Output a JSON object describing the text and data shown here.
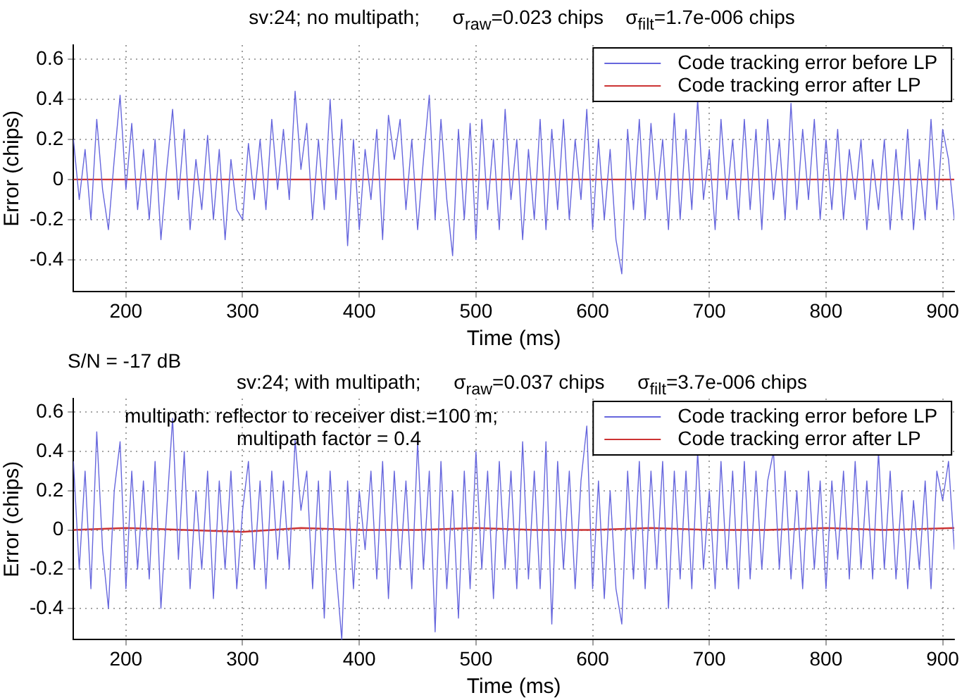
{
  "chart_data": [
    {
      "type": "line",
      "title": "sv:24; no multipath;      σ$_{raw}$=0.023 chips    σ$_{filt}$=1.7e-006 chips",
      "xlabel": "Time (ms)",
      "ylabel": "Error (chips)",
      "annotations": [
        "S/N = -17 dB"
      ],
      "x": [
        155,
        160,
        165,
        170,
        175,
        180,
        185,
        190,
        195,
        200,
        205,
        210,
        215,
        220,
        225,
        230,
        235,
        240,
        245,
        250,
        255,
        260,
        265,
        270,
        275,
        280,
        285,
        290,
        295,
        300,
        305,
        310,
        315,
        320,
        325,
        330,
        335,
        340,
        345,
        350,
        355,
        360,
        365,
        370,
        375,
        380,
        385,
        390,
        395,
        400,
        405,
        410,
        415,
        420,
        425,
        430,
        435,
        440,
        445,
        450,
        455,
        460,
        465,
        470,
        475,
        480,
        485,
        490,
        495,
        500,
        505,
        510,
        515,
        520,
        525,
        530,
        535,
        540,
        545,
        550,
        555,
        560,
        565,
        570,
        575,
        580,
        585,
        590,
        595,
        600,
        605,
        610,
        615,
        620,
        625,
        630,
        635,
        640,
        645,
        650,
        655,
        660,
        665,
        670,
        675,
        680,
        685,
        690,
        695,
        700,
        705,
        710,
        715,
        720,
        725,
        730,
        735,
        740,
        745,
        750,
        755,
        760,
        765,
        770,
        775,
        780,
        785,
        790,
        795,
        800,
        805,
        810,
        815,
        820,
        825,
        830,
        835,
        840,
        845,
        850,
        855,
        860,
        865,
        870,
        875,
        880,
        885,
        890,
        895,
        900,
        905,
        910
      ],
      "series": [
        {
          "name": "Code tracking error before LP",
          "color": "#6666dd",
          "values": [
            0.2,
            -0.1,
            0.15,
            -0.2,
            0.3,
            -0.05,
            -0.25,
            0.1,
            0.42,
            -0.05,
            0.28,
            -0.15,
            0.15,
            -0.2,
            0.2,
            -0.3,
            0.05,
            0.35,
            -0.1,
            0.25,
            -0.25,
            0.1,
            -0.15,
            0.22,
            -0.2,
            0.15,
            -0.3,
            0.1,
            -0.15,
            -0.2,
            0.18,
            -0.1,
            0.2,
            -0.15,
            0.3,
            -0.05,
            0.25,
            -0.1,
            0.44,
            0.05,
            0.28,
            -0.2,
            0.2,
            -0.15,
            0.4,
            -0.1,
            0.3,
            -0.33,
            0.2,
            -0.25,
            0.15,
            -0.1,
            0.25,
            -0.3,
            0.32,
            0.1,
            0.3,
            -0.15,
            0.2,
            -0.25,
            0.1,
            0.42,
            -0.2,
            0.3,
            -0.1,
            -0.38,
            0.25,
            -0.2,
            0.28,
            -0.3,
            0.3,
            -0.15,
            0.2,
            -0.25,
            0.35,
            -0.1,
            0.2,
            -0.3,
            0.15,
            -0.2,
            0.3,
            -0.25,
            0.25,
            -0.15,
            0.3,
            -0.2,
            0.2,
            -0.1,
            0.35,
            -0.25,
            0.2,
            -0.2,
            0.15,
            -0.3,
            -0.47,
            0.25,
            -0.15,
            0.3,
            -0.2,
            0.28,
            -0.1,
            0.2,
            -0.25,
            0.33,
            -0.2,
            0.25,
            -0.15,
            0.4,
            -0.1,
            0.15,
            -0.25,
            0.3,
            -0.1,
            0.2,
            -0.2,
            0.3,
            -0.15,
            0.25,
            -0.25,
            0.3,
            -0.1,
            0.2,
            -0.2,
            0.38,
            -0.15,
            0.25,
            -0.1,
            0.3,
            -0.2,
            0.2,
            -0.15,
            0.25,
            -0.2,
            0.15,
            -0.1,
            0.2,
            -0.25,
            0.1,
            -0.15,
            0.2,
            -0.25,
            0.15,
            -0.2,
            0.25,
            -0.25,
            0.1,
            -0.2,
            0.3,
            -0.15,
            0.25,
            0.1,
            -0.2
          ]
        },
        {
          "name": "Code tracking error after LP",
          "color": "#cc3333",
          "x": [
            155,
            910
          ],
          "values": [
            0,
            0
          ]
        }
      ],
      "xlim": [
        155,
        910
      ],
      "ylim": [
        -0.56,
        0.67
      ],
      "xticks": [
        200,
        300,
        400,
        500,
        600,
        700,
        800,
        900
      ],
      "yticks": [
        -0.4,
        -0.2,
        0,
        0.2,
        0.4,
        0.6
      ],
      "grid": true,
      "legend": "top right",
      "marker": "none",
      "line_style": "solid"
    },
    {
      "type": "line",
      "title": "sv:24; with multipath;      σ$_{raw}$=0.037 chips      σ$_{filt}$=3.7e-006 chips",
      "xlabel": "Time (ms)",
      "ylabel": "Error (chips)",
      "annotations": [
        "multipath: reflector to receiver dist.=100 m;",
        "multipath factor = 0.4"
      ],
      "x": [
        155,
        160,
        165,
        170,
        175,
        180,
        185,
        190,
        195,
        200,
        205,
        210,
        215,
        220,
        225,
        230,
        235,
        240,
        245,
        250,
        255,
        260,
        265,
        270,
        275,
        280,
        285,
        290,
        295,
        300,
        305,
        310,
        315,
        320,
        325,
        330,
        335,
        340,
        345,
        350,
        355,
        360,
        365,
        370,
        375,
        380,
        385,
        390,
        395,
        400,
        405,
        410,
        415,
        420,
        425,
        430,
        435,
        440,
        445,
        450,
        455,
        460,
        465,
        470,
        475,
        480,
        485,
        490,
        495,
        500,
        505,
        510,
        515,
        520,
        525,
        530,
        535,
        540,
        545,
        550,
        555,
        560,
        565,
        570,
        575,
        580,
        585,
        590,
        595,
        600,
        605,
        610,
        615,
        620,
        625,
        630,
        635,
        640,
        645,
        650,
        655,
        660,
        665,
        670,
        675,
        680,
        685,
        690,
        695,
        700,
        705,
        710,
        715,
        720,
        725,
        730,
        735,
        740,
        745,
        750,
        755,
        760,
        765,
        770,
        775,
        780,
        785,
        790,
        795,
        800,
        805,
        810,
        815,
        820,
        825,
        830,
        835,
        840,
        845,
        850,
        855,
        860,
        865,
        870,
        875,
        880,
        885,
        890,
        895,
        900,
        905,
        910
      ],
      "series": [
        {
          "name": "Code tracking error before LP",
          "color": "#6666dd",
          "values": [
            0.35,
            -0.2,
            0.3,
            -0.3,
            0.5,
            -0.1,
            -0.4,
            0.2,
            0.45,
            -0.3,
            0.3,
            -0.2,
            0.25,
            -0.25,
            0.35,
            -0.4,
            0.1,
            0.57,
            -0.15,
            0.4,
            -0.3,
            0.2,
            -0.2,
            0.3,
            -0.35,
            0.25,
            -0.2,
            0.3,
            -0.3,
            0.1,
            0.35,
            -0.2,
            0.25,
            -0.3,
            0.3,
            -0.15,
            0.25,
            -0.2,
            0.46,
            0.1,
            0.3,
            -0.3,
            0.25,
            -0.45,
            0.3,
            -0.2,
            -0.56,
            0.25,
            -0.3,
            0.2,
            -0.1,
            0.3,
            -0.25,
            0.35,
            -0.35,
            0.3,
            -0.2,
            0.25,
            -0.3,
            0.45,
            -0.2,
            0.3,
            -0.52,
            0.35,
            -0.3,
            0.2,
            -0.45,
            0.3,
            -0.3,
            0.4,
            -0.2,
            0.3,
            -0.35,
            0.35,
            -0.2,
            0.3,
            -0.3,
            0.45,
            -0.25,
            0.3,
            -0.3,
            0.45,
            -0.48,
            0.35,
            -0.2,
            0.3,
            -0.3,
            0.25,
            0.53,
            -0.3,
            0.25,
            -0.35,
            0.2,
            -0.3,
            -0.48,
            0.3,
            -0.25,
            0.35,
            -0.3,
            0.3,
            -0.2,
            0.35,
            -0.4,
            0.3,
            -0.25,
            0.3,
            -0.3,
            0.4,
            -0.2,
            0.2,
            -0.3,
            0.35,
            -0.2,
            0.3,
            -0.3,
            0.35,
            -0.25,
            0.3,
            -0.2,
            0.25,
            0.4,
            -0.2,
            0.3,
            -0.25,
            0.2,
            -0.3,
            0.3,
            -0.2,
            0.25,
            -0.3,
            0.25,
            -0.15,
            0.3,
            -0.25,
            0.35,
            -0.2,
            0.25,
            -0.25,
            0.4,
            -0.2,
            0.3,
            -0.25,
            0.2,
            -0.3,
            0.15,
            -0.2,
            0.25,
            -0.3,
            0.3,
            0.15,
            0.35,
            -0.1
          ]
        },
        {
          "name": "Code tracking error after LP",
          "color": "#cc3333",
          "x": [
            155,
            200,
            250,
            300,
            350,
            400,
            450,
            500,
            550,
            600,
            650,
            700,
            750,
            800,
            850,
            910
          ],
          "values": [
            0,
            0.01,
            0,
            -0.01,
            0.01,
            0,
            0,
            0.01,
            0,
            0,
            0.01,
            0,
            0,
            0.01,
            0,
            0.01
          ]
        }
      ],
      "xlim": [
        155,
        910
      ],
      "ylim": [
        -0.56,
        0.67
      ],
      "xticks": [
        200,
        300,
        400,
        500,
        600,
        700,
        800,
        900
      ],
      "yticks": [
        -0.4,
        -0.2,
        0,
        0.2,
        0.4,
        0.6
      ],
      "grid": true,
      "legend": "top right",
      "marker": "none",
      "line_style": "solid"
    }
  ]
}
